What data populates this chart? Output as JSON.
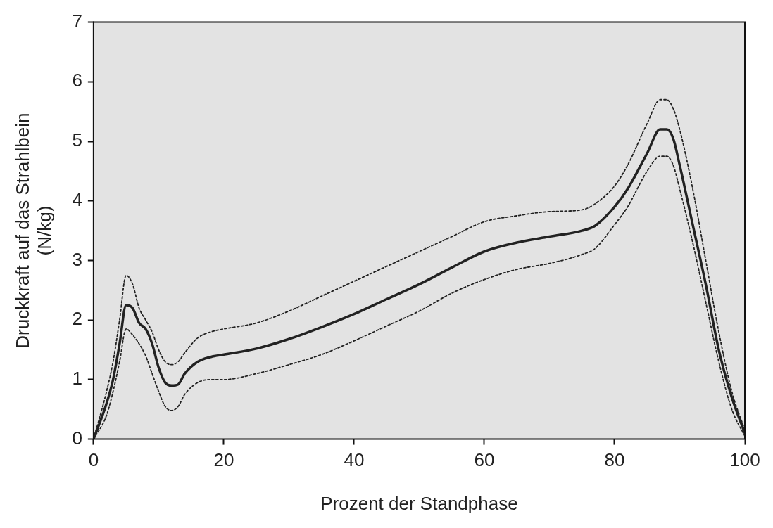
{
  "chart_data": {
    "type": "line",
    "xlabel": "Prozent der Standphase",
    "ylabel": "Druckkraft auf das Strahlbein\n(N/kg)",
    "xlim": [
      0,
      100
    ],
    "xticks": [
      0,
      20,
      40,
      60,
      80,
      100
    ],
    "ylim": [
      0,
      7
    ],
    "yticks": [
      0,
      1,
      2,
      3,
      4,
      5,
      6,
      7
    ],
    "grid": false,
    "legend": false,
    "marker": "none",
    "x": [
      0,
      2,
      3,
      4,
      5,
      6,
      7,
      8,
      9,
      10,
      11,
      12,
      13,
      14,
      16,
      18,
      20,
      25,
      30,
      35,
      40,
      45,
      50,
      55,
      60,
      65,
      70,
      75,
      77,
      80,
      82,
      85,
      87,
      88,
      89,
      90,
      92,
      94,
      96,
      98,
      100
    ],
    "series": [
      {
        "color": "#222222",
        "line_style": "solid",
        "values": [
          0,
          0.6,
          1.0,
          1.6,
          2.25,
          2.2,
          1.95,
          1.85,
          1.6,
          1.2,
          0.95,
          0.9,
          0.92,
          1.1,
          1.3,
          1.38,
          1.42,
          1.52,
          1.68,
          1.88,
          2.1,
          2.35,
          2.6,
          2.88,
          3.15,
          3.3,
          3.4,
          3.5,
          3.58,
          3.9,
          4.2,
          4.8,
          5.2,
          5.2,
          5.05,
          4.6,
          3.6,
          2.6,
          1.5,
          0.7,
          0.1
        ]
      },
      {
        "color": "#222222",
        "line_style": "dotted",
        "values": [
          0,
          0.8,
          1.3,
          2.0,
          2.75,
          2.6,
          2.2,
          2.0,
          1.8,
          1.5,
          1.3,
          1.25,
          1.3,
          1.45,
          1.7,
          1.8,
          1.85,
          1.95,
          2.15,
          2.4,
          2.65,
          2.9,
          3.15,
          3.4,
          3.65,
          3.75,
          3.82,
          3.85,
          3.95,
          4.25,
          4.6,
          5.3,
          5.7,
          5.7,
          5.55,
          5.2,
          4.2,
          3.0,
          1.8,
          0.8,
          0.15
        ]
      },
      {
        "color": "#222222",
        "line_style": "dotted",
        "values": [
          0,
          0.4,
          0.8,
          1.3,
          1.85,
          1.75,
          1.6,
          1.4,
          1.1,
          0.8,
          0.55,
          0.48,
          0.55,
          0.75,
          0.95,
          1.0,
          1.0,
          1.1,
          1.25,
          1.42,
          1.65,
          1.9,
          2.15,
          2.45,
          2.68,
          2.85,
          2.95,
          3.1,
          3.2,
          3.6,
          3.9,
          4.5,
          4.75,
          4.75,
          4.6,
          4.2,
          3.3,
          2.3,
          1.3,
          0.5,
          0.05
        ]
      }
    ]
  }
}
